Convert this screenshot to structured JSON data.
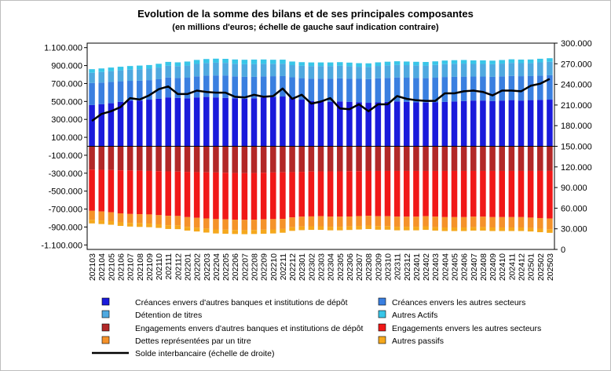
{
  "chart_data": {
    "type": "bar",
    "stacked": true,
    "title": "Evolution de la somme des bilans et de ses principales composantes",
    "subtitle": "(en millions d'euros; échelle de gauche sauf indication contraire)",
    "categories": [
      "202103",
      "202104",
      "202105",
      "202106",
      "202107",
      "202108",
      "202109",
      "202110",
      "202111",
      "202112",
      "202201",
      "202202",
      "202203",
      "202204",
      "202205",
      "202206",
      "202207",
      "202208",
      "202209",
      "202210",
      "202211",
      "202212",
      "202301",
      "202302",
      "202303",
      "202304",
      "202305",
      "202306",
      "202307",
      "202308",
      "202309",
      "202310",
      "202311",
      "202312",
      "202401",
      "202402",
      "202403",
      "202404",
      "202405",
      "202406",
      "202407",
      "202408",
      "202409",
      "202410",
      "202411",
      "202412",
      "202501",
      "202502",
      "202503"
    ],
    "y_left": {
      "min": -1150000,
      "max": 1150000,
      "ticks": [
        -1100000,
        -900000,
        -700000,
        -500000,
        -300000,
        -100000,
        100000,
        300000,
        500000,
        700000,
        900000,
        1100000
      ],
      "tick_labels": [
        "-1.100.000",
        "-900.000",
        "-700.000",
        "-500.000",
        "-300.000",
        "-100.000",
        "100.000",
        "300.000",
        "500.000",
        "700.000",
        "900.000",
        "1.100.000"
      ]
    },
    "y_right": {
      "min": 0,
      "max": 300000,
      "ticks": [
        0,
        30000,
        60000,
        90000,
        120000,
        150000,
        180000,
        210000,
        240000,
        270000,
        300000
      ],
      "tick_labels": [
        "0",
        "30.000",
        "60.000",
        "90.000",
        "120.000",
        "150.000",
        "180.000",
        "210.000",
        "240.000",
        "270.000",
        "300.000"
      ]
    },
    "series": [
      {
        "name": "Créances envers d'autres banques et institutions de dépôt",
        "color": "#1a1adb",
        "axis": "left",
        "values": [
          460000,
          470000,
          480000,
          495000,
          510000,
          510000,
          520000,
          530000,
          545000,
          540000,
          535000,
          545000,
          550000,
          545000,
          540000,
          535000,
          530000,
          535000,
          545000,
          550000,
          555000,
          545000,
          520000,
          505000,
          500000,
          495000,
          500000,
          495000,
          490000,
          485000,
          490000,
          495000,
          500000,
          495000,
          490000,
          488000,
          490000,
          495000,
          500000,
          505000,
          510000,
          510000,
          505000,
          510000,
          515000,
          510000,
          515000,
          518000,
          520000
        ]
      },
      {
        "name": "Créances envers les autres secteurs",
        "color": "#3a7fe0",
        "axis": "left",
        "values": [
          245000,
          240000,
          238000,
          230000,
          220000,
          222000,
          218000,
          218000,
          222000,
          222000,
          230000,
          235000,
          238000,
          245000,
          250000,
          245000,
          245000,
          240000,
          235000,
          232000,
          228000,
          225000,
          240000,
          250000,
          255000,
          260000,
          258000,
          260000,
          262000,
          265000,
          268000,
          268000,
          268000,
          270000,
          272000,
          272000,
          275000,
          278000,
          275000,
          272000,
          268000,
          268000,
          270000,
          270000,
          270000,
          272000,
          268000,
          270000,
          272000
        ]
      },
      {
        "name": "Détention de titres",
        "color": "#4fa9e0",
        "axis": "left",
        "values": [
          115000,
          118000,
          120000,
          122000,
          125000,
          128000,
          128000,
          130000,
          132000,
          132000,
          135000,
          138000,
          140000,
          142000,
          140000,
          140000,
          140000,
          142000,
          140000,
          138000,
          138000,
          135000,
          138000,
          140000,
          140000,
          140000,
          140000,
          138000,
          135000,
          135000,
          138000,
          140000,
          140000,
          140000,
          140000,
          140000,
          142000,
          143000,
          145000,
          145000,
          140000,
          140000,
          140000,
          142000,
          145000,
          145000,
          145000,
          148000,
          150000
        ]
      },
      {
        "name": "Autres Actifs",
        "color": "#38c6e8",
        "axis": "left",
        "values": [
          40000,
          40000,
          40000,
          40000,
          40000,
          40000,
          40000,
          42000,
          42000,
          42000,
          45000,
          45000,
          45000,
          45000,
          45000,
          48000,
          50000,
          50000,
          48000,
          45000,
          45000,
          40000,
          40000,
          40000,
          40000,
          40000,
          40000,
          40000,
          40000,
          40000,
          40000,
          40000,
          40000,
          40000,
          40000,
          40000,
          40000,
          40000,
          40000,
          40000,
          40000,
          40000,
          40000,
          40000,
          40000,
          40000,
          40000,
          40000,
          40000
        ]
      },
      {
        "name": "Engagements envers d'autres banques et institutions de dépôt",
        "color": "#b22828",
        "axis": "left",
        "values": [
          -260000,
          -262000,
          -265000,
          -268000,
          -270000,
          -272000,
          -275000,
          -278000,
          -280000,
          -282000,
          -285000,
          -288000,
          -290000,
          -292000,
          -295000,
          -298000,
          -300000,
          -298000,
          -295000,
          -292000,
          -290000,
          -288000,
          -285000,
          -282000,
          -280000,
          -280000,
          -280000,
          -278000,
          -278000,
          -275000,
          -275000,
          -275000,
          -275000,
          -275000,
          -275000,
          -275000,
          -275000,
          -275000,
          -275000,
          -275000,
          -275000,
          -275000,
          -275000,
          -275000,
          -275000,
          -275000,
          -275000,
          -275000,
          -275000
        ]
      },
      {
        "name": "Engagements envers les autres secteurs",
        "color": "#f01818",
        "axis": "left",
        "values": [
          -460000,
          -465000,
          -470000,
          -480000,
          -485000,
          -485000,
          -485000,
          -490000,
          -495000,
          -495000,
          -505000,
          -510000,
          -515000,
          -520000,
          -520000,
          -520000,
          -520000,
          -520000,
          -520000,
          -520000,
          -520000,
          -505000,
          -500000,
          -500000,
          -500000,
          -505000,
          -505000,
          -505000,
          -500000,
          -500000,
          -505000,
          -505000,
          -510000,
          -510000,
          -510000,
          -505000,
          -510000,
          -515000,
          -515000,
          -515000,
          -510000,
          -510000,
          -515000,
          -515000,
          -515000,
          -515000,
          -520000,
          -525000,
          -530000
        ]
      },
      {
        "name": "Dettes représentées par un titre",
        "color": "#f5922a",
        "axis": "left",
        "values": [
          -100000,
          -100000,
          -100000,
          -100000,
          -100000,
          -102000,
          -102000,
          -102000,
          -105000,
          -105000,
          -108000,
          -110000,
          -112000,
          -115000,
          -115000,
          -115000,
          -115000,
          -115000,
          -115000,
          -115000,
          -112000,
          -110000,
          -110000,
          -110000,
          -112000,
          -112000,
          -112000,
          -110000,
          -110000,
          -108000,
          -110000,
          -110000,
          -112000,
          -112000,
          -112000,
          -112000,
          -115000,
          -115000,
          -115000,
          -115000,
          -115000,
          -115000,
          -115000,
          -115000,
          -115000,
          -115000,
          -115000,
          -118000,
          -120000
        ]
      },
      {
        "name": "Autres passifs",
        "color": "#f5a81d",
        "axis": "left",
        "values": [
          -40000,
          -40000,
          -40000,
          -40000,
          -40000,
          -40000,
          -40000,
          -40000,
          -42000,
          -42000,
          -42000,
          -42000,
          -45000,
          -45000,
          -45000,
          -45000,
          -45000,
          -45000,
          -45000,
          -45000,
          -42000,
          -40000,
          -40000,
          -40000,
          -40000,
          -40000,
          -40000,
          -40000,
          -40000,
          -40000,
          -40000,
          -40000,
          -40000,
          -40000,
          -40000,
          -40000,
          -40000,
          -40000,
          -40000,
          -40000,
          -40000,
          -40000,
          -40000,
          -40000,
          -40000,
          -40000,
          -40000,
          -40000,
          -40000
        ]
      },
      {
        "name": "Solde interbancaire (échelle de droite)",
        "color": "#000000",
        "axis": "right",
        "type": "line",
        "values": [
          187000,
          197000,
          201000,
          207000,
          220000,
          218000,
          224000,
          233000,
          237000,
          226000,
          226000,
          231000,
          229000,
          228000,
          228000,
          222000,
          221000,
          225000,
          222000,
          223000,
          234000,
          219000,
          225000,
          212000,
          215000,
          220000,
          205000,
          204000,
          211000,
          201000,
          211000,
          211000,
          223000,
          219000,
          217000,
          216000,
          216000,
          227000,
          227000,
          230000,
          231000,
          229000,
          224000,
          231000,
          231000,
          230000,
          238000,
          241000,
          248000
        ]
      }
    ]
  },
  "legend": {
    "items": [
      {
        "label": "Créances envers d'autres banques et institutions de dépôt",
        "color": "#1a1adb",
        "kind": "box"
      },
      {
        "label": "Créances envers les autres secteurs",
        "color": "#3a7fe0",
        "kind": "box"
      },
      {
        "label": "Détention de titres",
        "color": "#4fa9e0",
        "kind": "box"
      },
      {
        "label": "Autres Actifs",
        "color": "#38c6e8",
        "kind": "box"
      },
      {
        "label": "Engagements envers d'autres banques et institutions de dépôt",
        "color": "#b22828",
        "kind": "box"
      },
      {
        "label": "Engagements envers les autres secteurs",
        "color": "#f01818",
        "kind": "box"
      },
      {
        "label": "Dettes représentées par un titre",
        "color": "#f5922a",
        "kind": "box"
      },
      {
        "label": "Autres passifs",
        "color": "#f5a81d",
        "kind": "box"
      },
      {
        "label": "Solde interbancaire (échelle de droite)",
        "color": "#000000",
        "kind": "line"
      }
    ]
  }
}
